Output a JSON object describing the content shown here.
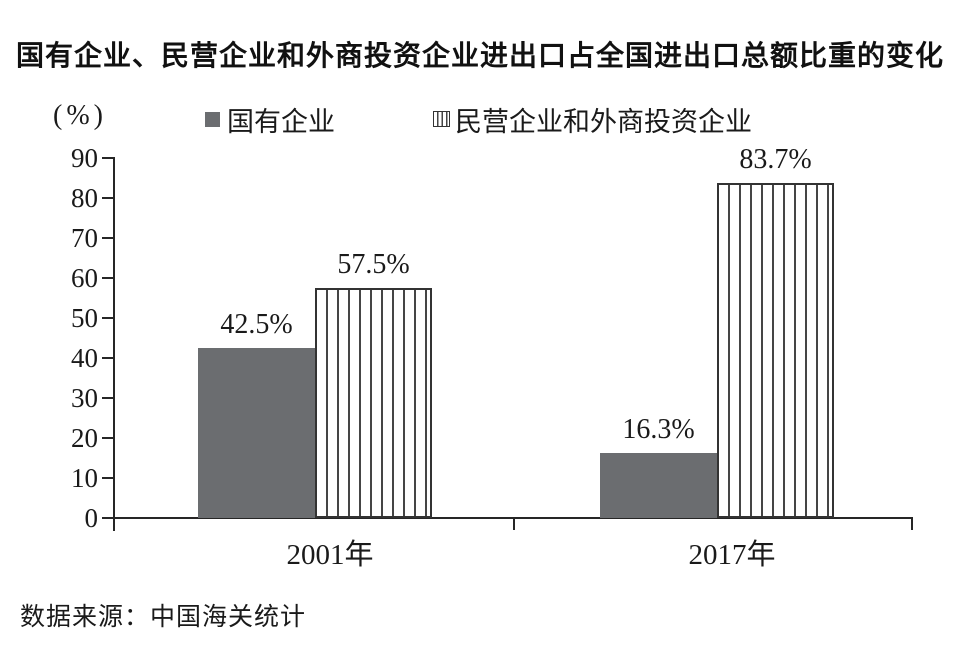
{
  "title": "国有企业、民营企业和外商投资企业进出口占全国进出口总额比重的变化",
  "y_unit_label": "(%)",
  "legend": {
    "items": [
      {
        "label": "国有企业",
        "swatch": "solid"
      },
      {
        "label": "民营企业和外商投资企业",
        "swatch": "striped"
      }
    ]
  },
  "source": "数据来源：中国海关统计",
  "colors": {
    "solid_bar": "#6b6d70",
    "stripe_line": "#454545",
    "bar_border": "#333333",
    "axis": "#262626",
    "text": "#1a1a1a"
  },
  "chart_data": {
    "type": "bar",
    "categories": [
      "2001年",
      "2017年"
    ],
    "series": [
      {
        "name": "国有企业",
        "style": "solid",
        "values": [
          42.5,
          16.3
        ]
      },
      {
        "name": "民营企业和外商投资企业",
        "style": "striped",
        "values": [
          57.5,
          83.7
        ]
      }
    ],
    "value_labels": [
      [
        "42.5%",
        "57.5%"
      ],
      [
        "16.3%",
        "83.7%"
      ]
    ],
    "title": "国有企业、民营企业和外商投资企业进出口占全国进出口总额比重的变化",
    "xlabel": "",
    "ylabel": "(%)",
    "ylim": [
      0,
      90
    ],
    "yticks": [
      0,
      10,
      20,
      30,
      40,
      50,
      60,
      70,
      80,
      90
    ],
    "grid": false,
    "legend_position": "top"
  }
}
